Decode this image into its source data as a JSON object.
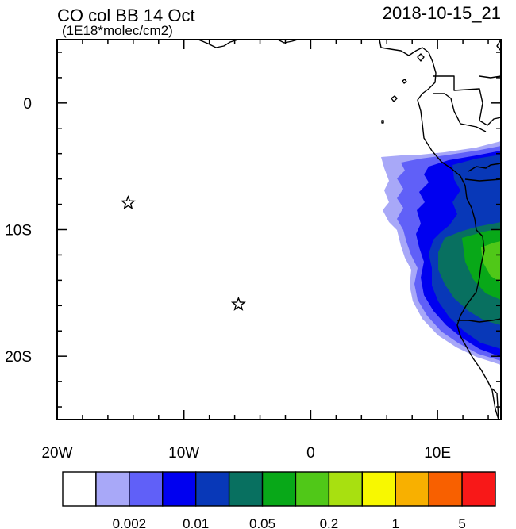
{
  "header": {
    "title": "CO col BB 14 Oct",
    "units": "(1E18*molec/cm2)",
    "valid_time": "2018-10-15_21"
  },
  "map": {
    "lon_range": [
      -20,
      15
    ],
    "lat_range": [
      -25,
      5
    ],
    "x_tick_labels": [
      {
        "lon": -20,
        "label": "20W"
      },
      {
        "lon": -10,
        "label": "10W"
      },
      {
        "lon": 0,
        "label": "0"
      },
      {
        "lon": 10,
        "label": "10E"
      }
    ],
    "y_tick_labels": [
      {
        "lat": 0,
        "label": "0"
      },
      {
        "lat": -10,
        "label": "10S"
      },
      {
        "lat": -20,
        "label": "20S"
      }
    ],
    "stations": [
      {
        "name": "star-marker-ascension",
        "lon": -14.4,
        "lat": -7.9
      },
      {
        "name": "star-marker-st-helena",
        "lon": -5.7,
        "lat": -15.9
      }
    ]
  },
  "colorbar": {
    "colors": [
      "#ffffff",
      "#a8a8f8",
      "#6060f8",
      "#0000f0",
      "#0838b8",
      "#087060",
      "#08a818",
      "#50c818",
      "#a8e010",
      "#f8f800",
      "#f8b000",
      "#f86000",
      "#f81818"
    ],
    "labels": [
      {
        "after_box": 2,
        "text": "0.002"
      },
      {
        "after_box": 4,
        "text": "0.01"
      },
      {
        "after_box": 6,
        "text": "0.05"
      },
      {
        "after_box": 8,
        "text": "0.2"
      },
      {
        "after_box": 10,
        "text": "1"
      },
      {
        "after_box": 12,
        "text": "5"
      }
    ]
  }
}
